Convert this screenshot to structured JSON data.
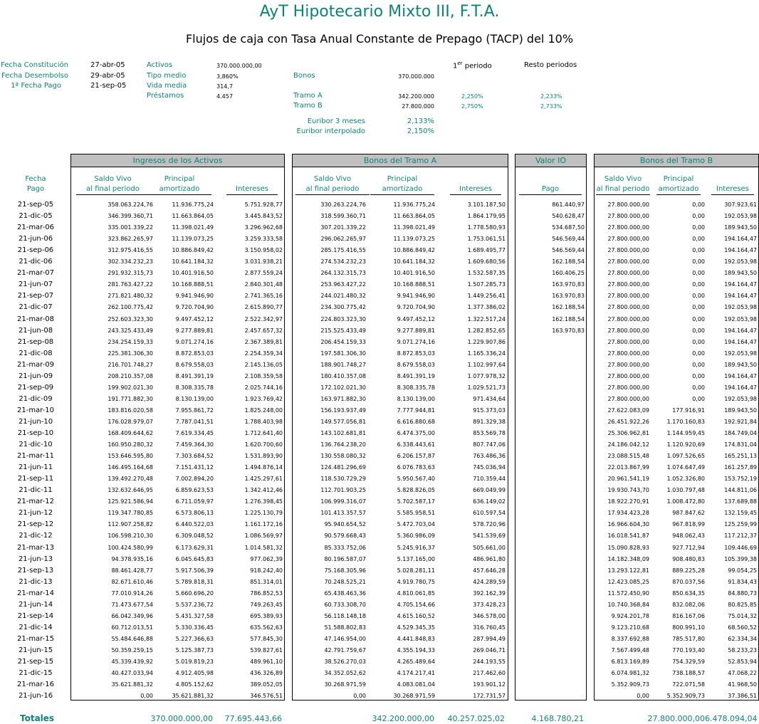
{
  "title": "AyT Hipotecario Mixto III, F.T.A.",
  "subtitle": "Flujos de caja con Tasa Anual Constante de Prepago (TACP) del 10%",
  "info": {
    "fecha_constitucion_label": "Fecha Constitución",
    "fecha_constitucion": "27-abr-05",
    "fecha_desembolso_label": "Fecha Desembolso",
    "fecha_desembolso": "29-abr-05",
    "primera_fecha_label": "1ª Fecha Pago",
    "primera_fecha": "21-sep-05",
    "activos_label": "Activos",
    "activos": "370.000.000,00",
    "tipo_medio_label": "Tipo medio",
    "tipo_medio": "3,860%",
    "vida_media_label": "Vida media",
    "vida_media": "314,7",
    "prestamos_label": "Préstamos",
    "prestamos": "4.457",
    "primer_periodo_label": "1",
    "primer_periodo_sup": "er",
    "primer_periodo_rest": " periodo",
    "resto_label": "Resto periodos",
    "bonos_label": "Bonos",
    "bonos": "370.000.000",
    "tramo_a_label": "Tramo A",
    "tramo_a": "342.200.000",
    "tramo_a_p1": "2,250%",
    "tramo_a_rest": "2,233%",
    "tramo_b_label": "Tramo B",
    "tramo_b": "27.800.000",
    "tramo_b_p1": "2,750%",
    "tramo_b_rest": "2,733%",
    "euribor3_label": "Euribor 3 meses",
    "euribor3": "2,133%",
    "euribor_interp_label": "Euribor interpolado",
    "euribor_interp": "2,150%"
  },
  "panels": {
    "activos": "Ingresos de los Activos",
    "tramo_a": "Bonos del Tramo A",
    "io": "Valor IO",
    "tramo_b": "Bonos del Tramo B"
  },
  "headers": {
    "fecha1": "Fecha",
    "fecha2": "Pago",
    "saldo1": "Saldo Vivo",
    "saldo2": "al final periodo",
    "principal1": "Principal",
    "principal2": "amortizado",
    "intereses": "Intereses",
    "pago": "Pago"
  },
  "rows": [
    [
      "21-sep-05",
      "358.063.224,76",
      "11.936.775,24",
      "5.751.928,77",
      "330.263.224,76",
      "11.936.775,24",
      "3.101.187,50",
      "861.440,97",
      "27.800.000,00",
      "0,00",
      "307.923,61"
    ],
    [
      "21-dic-05",
      "346.399.360,71",
      "11.663.864,05",
      "3.445.843,52",
      "318.599.360,71",
      "11.663.864,05",
      "1.864.179,95",
      "540.628,47",
      "27.800.000,00",
      "0,00",
      "192.053,98"
    ],
    [
      "21-mar-06",
      "335.001.339,22",
      "11.398.021,49",
      "3.296.962,68",
      "307.201.339,22",
      "11.398.021,49",
      "1.778.580,93",
      "534.687,50",
      "27.800.000,00",
      "0,00",
      "189.943,50"
    ],
    [
      "21-jun-06",
      "323.862.265,97",
      "11.139.073,25",
      "3.259.333,58",
      "296.062.265,97",
      "11.139.073,25",
      "1.753.061,51",
      "546.569,44",
      "27.800.000,00",
      "0,00",
      "194.164,47"
    ],
    [
      "21-sep-06",
      "312.975.416,55",
      "10.886.849,42",
      "3.150.958,02",
      "285.175.416,55",
      "10.886.849,42",
      "1.689.495,77",
      "546.569,44",
      "27.800.000,00",
      "0,00",
      "194.164,47"
    ],
    [
      "21-dic-06",
      "302.334.232,23",
      "10.641.184,32",
      "3.031.938,21",
      "274.534.232,23",
      "10.641.184,32",
      "1.609.680,56",
      "162.188,54",
      "27.800.000,00",
      "0,00",
      "192.053,98"
    ],
    [
      "21-mar-07",
      "291.932.315,73",
      "10.401.916,50",
      "2.877.559,24",
      "264.132.315,73",
      "10.401.916,50",
      "1.532.587,35",
      "160.406,25",
      "27.800.000,00",
      "0,00",
      "189.943,50"
    ],
    [
      "21-jun-07",
      "281.763.427,22",
      "10.168.888,51",
      "2.840.301,48",
      "253.963.427,22",
      "10.168.888,51",
      "1.507.285,73",
      "163.970,83",
      "27.800.000,00",
      "0,00",
      "194.164,47"
    ],
    [
      "21-sep-07",
      "271.821.480,32",
      "9.941.946,90",
      "2.741.365,16",
      "244.021.480,32",
      "9.941.946,90",
      "1.449.256,41",
      "163.970,83",
      "27.800.000,00",
      "0,00",
      "194.164,47"
    ],
    [
      "21-dic-07",
      "262.100.775,42",
      "9.720.704,90",
      "2.615.890,77",
      "234.300.775,42",
      "9.720.704,90",
      "1.377.386,02",
      "162.188,54",
      "27.800.000,00",
      "0,00",
      "192.053,98"
    ],
    [
      "21-mar-08",
      "252.603.323,30",
      "9.497.452,12",
      "2.522.342,97",
      "224.803.323,30",
      "9.497.452,12",
      "1.322.517,24",
      "162.188,54",
      "27.800.000,00",
      "0,00",
      "192.053,98"
    ],
    [
      "21-jun-08",
      "243.325.433,49",
      "9.277.889,81",
      "2.457.657,32",
      "215.525.433,49",
      "9.277.889,81",
      "1.282.852,65",
      "163.970,83",
      "27.800.000,00",
      "0,00",
      "194.164,47"
    ],
    [
      "21-sep-08",
      "234.254.159,33",
      "9.071.274,16",
      "2.367.389,81",
      "206.454.159,33",
      "9.071.274,16",
      "1.229.907,86",
      "",
      "27.800.000,00",
      "0,00",
      "194.164,47"
    ],
    [
      "21-dic-08",
      "225.381.306,30",
      "8.872.853,03",
      "2.254.359,34",
      "197.581.306,30",
      "8.872.853,03",
      "1.165.336,24",
      "",
      "27.800.000,00",
      "0,00",
      "192.053,98"
    ],
    [
      "21-mar-09",
      "216.701.748,27",
      "8.679.558,03",
      "2.145.136,05",
      "188.901.748,27",
      "8.679.558,03",
      "1.102.997,64",
      "",
      "27.800.000,00",
      "0,00",
      "189.943,50"
    ],
    [
      "21-jun-09",
      "208.210.357,08",
      "8.491.391,19",
      "2.108.359,58",
      "180.410.357,08",
      "8.491.391,19",
      "1.077.978,32",
      "",
      "27.800.000,00",
      "0,00",
      "194.164,47"
    ],
    [
      "21-sep-09",
      "199.902.021,30",
      "8.308.335,78",
      "2.025.744,16",
      "172.102.021,30",
      "8.308.335,78",
      "1.029.521,73",
      "",
      "27.800.000,00",
      "0,00",
      "194.164,47"
    ],
    [
      "21-dic-09",
      "191.771.882,30",
      "8.130.139,00",
      "1.923.769,42",
      "163.971.882,30",
      "8.130.139,00",
      "971.434,64",
      "",
      "27.800.000,00",
      "0,00",
      "192.053,98"
    ],
    [
      "21-mar-10",
      "183.816.020,58",
      "7.955.861,72",
      "1.825.248,00",
      "156.193.937,49",
      "7.777.944,81",
      "915.373,03",
      "",
      "27.622.083,09",
      "177.916,91",
      "189.943,50"
    ],
    [
      "21-jun-10",
      "176.028.979,07",
      "7.787.041,51",
      "1.788.403,98",
      "149.577.056,81",
      "6.616.880,68",
      "891.329,38",
      "",
      "26.451.922,26",
      "1.170.160,83",
      "192.921,84"
    ],
    [
      "21-sep-10",
      "168.409.644,62",
      "7.619.334,45",
      "1.712.641,40",
      "143.102.681,81",
      "6.474.375,00",
      "853.569,78",
      "",
      "25.306.962,81",
      "1.144.959,45",
      "184.749,04"
    ],
    [
      "21-dic-10",
      "160.950.280,32",
      "7.459.364,30",
      "1.620.700,60",
      "136.764.238,20",
      "6.338.443,61",
      "807.747,06",
      "",
      "24.186.042,12",
      "1.120.920,69",
      "174.831,04"
    ],
    [
      "21-mar-11",
      "153.646.595,80",
      "7.303.684,52",
      "1.531.893,90",
      "130.558.080,32",
      "6.206.157,87",
      "763.486,36",
      "",
      "23.088.515,48",
      "1.097.526,65",
      "165.251,13"
    ],
    [
      "21-jun-11",
      "146.495.164,68",
      "7.151.431,12",
      "1.494.876,14",
      "124.481.296,69",
      "6.076.783,63",
      "745.036,94",
      "",
      "22.013.867,99",
      "1.074.647,49",
      "161.257,89"
    ],
    [
      "21-sep-11",
      "139.492.270,48",
      "7.002.894,20",
      "1.425.297,61",
      "118.530.729,29",
      "5.950.567,40",
      "710.359,44",
      "",
      "20.961.541,19",
      "1.052.326,80",
      "153.752,19"
    ],
    [
      "21-dic-11",
      "132.632.646,95",
      "6.859.623,53",
      "1.342.412,46",
      "112.701.903,25",
      "5.828.826,05",
      "669.049,99",
      "",
      "19.930.743,70",
      "1.030.797,48",
      "144.811,06"
    ],
    [
      "21-mar-12",
      "125.921.586,94",
      "6.711.059,97",
      "1.276.398,45",
      "106.999.316,07",
      "5.702.587,17",
      "636.149,02",
      "",
      "18.922.270,91",
      "1.008.472,80",
      "137.689,88"
    ],
    [
      "21-jun-12",
      "119.347.780,85",
      "6.573.806,13",
      "1.225.130,79",
      "101.413.357,57",
      "5.585.958,51",
      "610.597,54",
      "",
      "17.934.423,28",
      "987.847,62",
      "132.159,45"
    ],
    [
      "21-sep-12",
      "112.907.258,82",
      "6.440.522,03",
      "1.161.172,16",
      "95.940.654,52",
      "5.472.703,04",
      "578.720,96",
      "",
      "16.966.604,30",
      "967.818,99",
      "125.259,99"
    ],
    [
      "21-dic-12",
      "106.598.210,30",
      "6.309.048,52",
      "1.086.569,97",
      "90.579.668,43",
      "5.360.986,09",
      "541.539,69",
      "",
      "16.018.541,87",
      "948.062,43",
      "117.212,37"
    ],
    [
      "21-mar-13",
      "100.424.580,99",
      "6.173.629,31",
      "1.014.581,32",
      "85.333.752,06",
      "5.245.916,37",
      "505.661,00",
      "",
      "15.090.828,93",
      "927.712,94",
      "109.446,69"
    ],
    [
      "21-jun-13",
      "94.378.935,16",
      "6.045.645,83",
      "977.062,39",
      "80.196.587,07",
      "5.137.165,00",
      "486.961,80",
      "",
      "14.182.348,09",
      "908.480,83",
      "105.399,38"
    ],
    [
      "21-sep-13",
      "88.461.428,77",
      "5.917.506,39",
      "918.242,40",
      "75.168.305,96",
      "5.028.281,11",
      "457.646,28",
      "",
      "13.293.122,81",
      "889.225,28",
      "99.054,25"
    ],
    [
      "21-dic-13",
      "82.671.610,46",
      "5.789.818,31",
      "851.314,01",
      "70.248.525,21",
      "4.919.780,75",
      "424.289,59",
      "",
      "12.423.085,25",
      "870.037,56",
      "91.834,43"
    ],
    [
      "21-mar-14",
      "77.010.914,26",
      "5.660.696,20",
      "786.852,53",
      "65.438.463,36",
      "4.810.061,85",
      "392.162,39",
      "",
      "11.572.450,90",
      "850.634,35",
      "84.880,73"
    ],
    [
      "21-jun-14",
      "71.473.677,54",
      "5.537.236,72",
      "749.263,45",
      "60.733.308,70",
      "4.705.154,66",
      "373.428,23",
      "",
      "10.740.368,84",
      "832.082,06",
      "80.825,85"
    ],
    [
      "21-sep-14",
      "66.042.349,96",
      "5.431.327,58",
      "695.389,93",
      "56.118.148,18",
      "4.615.160,52",
      "346.578,00",
      "",
      "9.924.201,78",
      "816.167,06",
      "75.014,32"
    ],
    [
      "21-dic-14",
      "60.712.013,51",
      "5.330.336,45",
      "635.562,63",
      "51.588.802,83",
      "4.529.345,35",
      "316.760,45",
      "",
      "9.123.210,68",
      "800.991,10",
      "68.560,52"
    ],
    [
      "21-mar-15",
      "55.484.646,88",
      "5.227.366,63",
      "577.845,30",
      "47.146.954,00",
      "4.441.848,83",
      "287.994,49",
      "",
      "8.337.692,88",
      "785.517,80",
      "62.334,34"
    ],
    [
      "21-jun-15",
      "50.359.259,15",
      "5.125.387,73",
      "539.827,61",
      "42.791.759,67",
      "4.355.194,33",
      "269.046,71",
      "",
      "7.567.499,48",
      "770.193,40",
      "58.233,23"
    ],
    [
      "21-sep-15",
      "45.339.439,92",
      "5.019.819,23",
      "489.961,10",
      "38.526.270,03",
      "4.265.489,64",
      "244.193,55",
      "",
      "6.813.169,89",
      "754.329,59",
      "52.853,94"
    ],
    [
      "21-dic-15",
      "40.427.033,94",
      "4.912.405,98",
      "436.326,89",
      "34.352.052,62",
      "4.174.217,41",
      "217.462,60",
      "",
      "6.074.981,32",
      "738.188,57",
      "47.068,22"
    ],
    [
      "21-mar-16",
      "35.621.881,32",
      "4.805.152,62",
      "389.052,05",
      "30.268.971,59",
      "4.083.081,04",
      "193.901,12",
      "",
      "5.352.909,73",
      "722.071,58",
      "41.968,50"
    ],
    [
      "21-jun-16",
      "0,00",
      "35.621.881,32",
      "346.576,51",
      "0,00",
      "30.268.971,59",
      "172.731,57",
      "",
      "0,00",
      "5.352.909,73",
      "37.386,51"
    ]
  ],
  "totals": {
    "label": "Totales",
    "act_principal": "370.000.000,00",
    "act_intereses": "77.695.443,66",
    "a_principal": "342.200.000,00",
    "a_intereses": "40.257.025,02",
    "io_pago": "4.168.780,21",
    "b_principal": "27.800.000,00",
    "b_intereses": "6.478.094,04"
  }
}
